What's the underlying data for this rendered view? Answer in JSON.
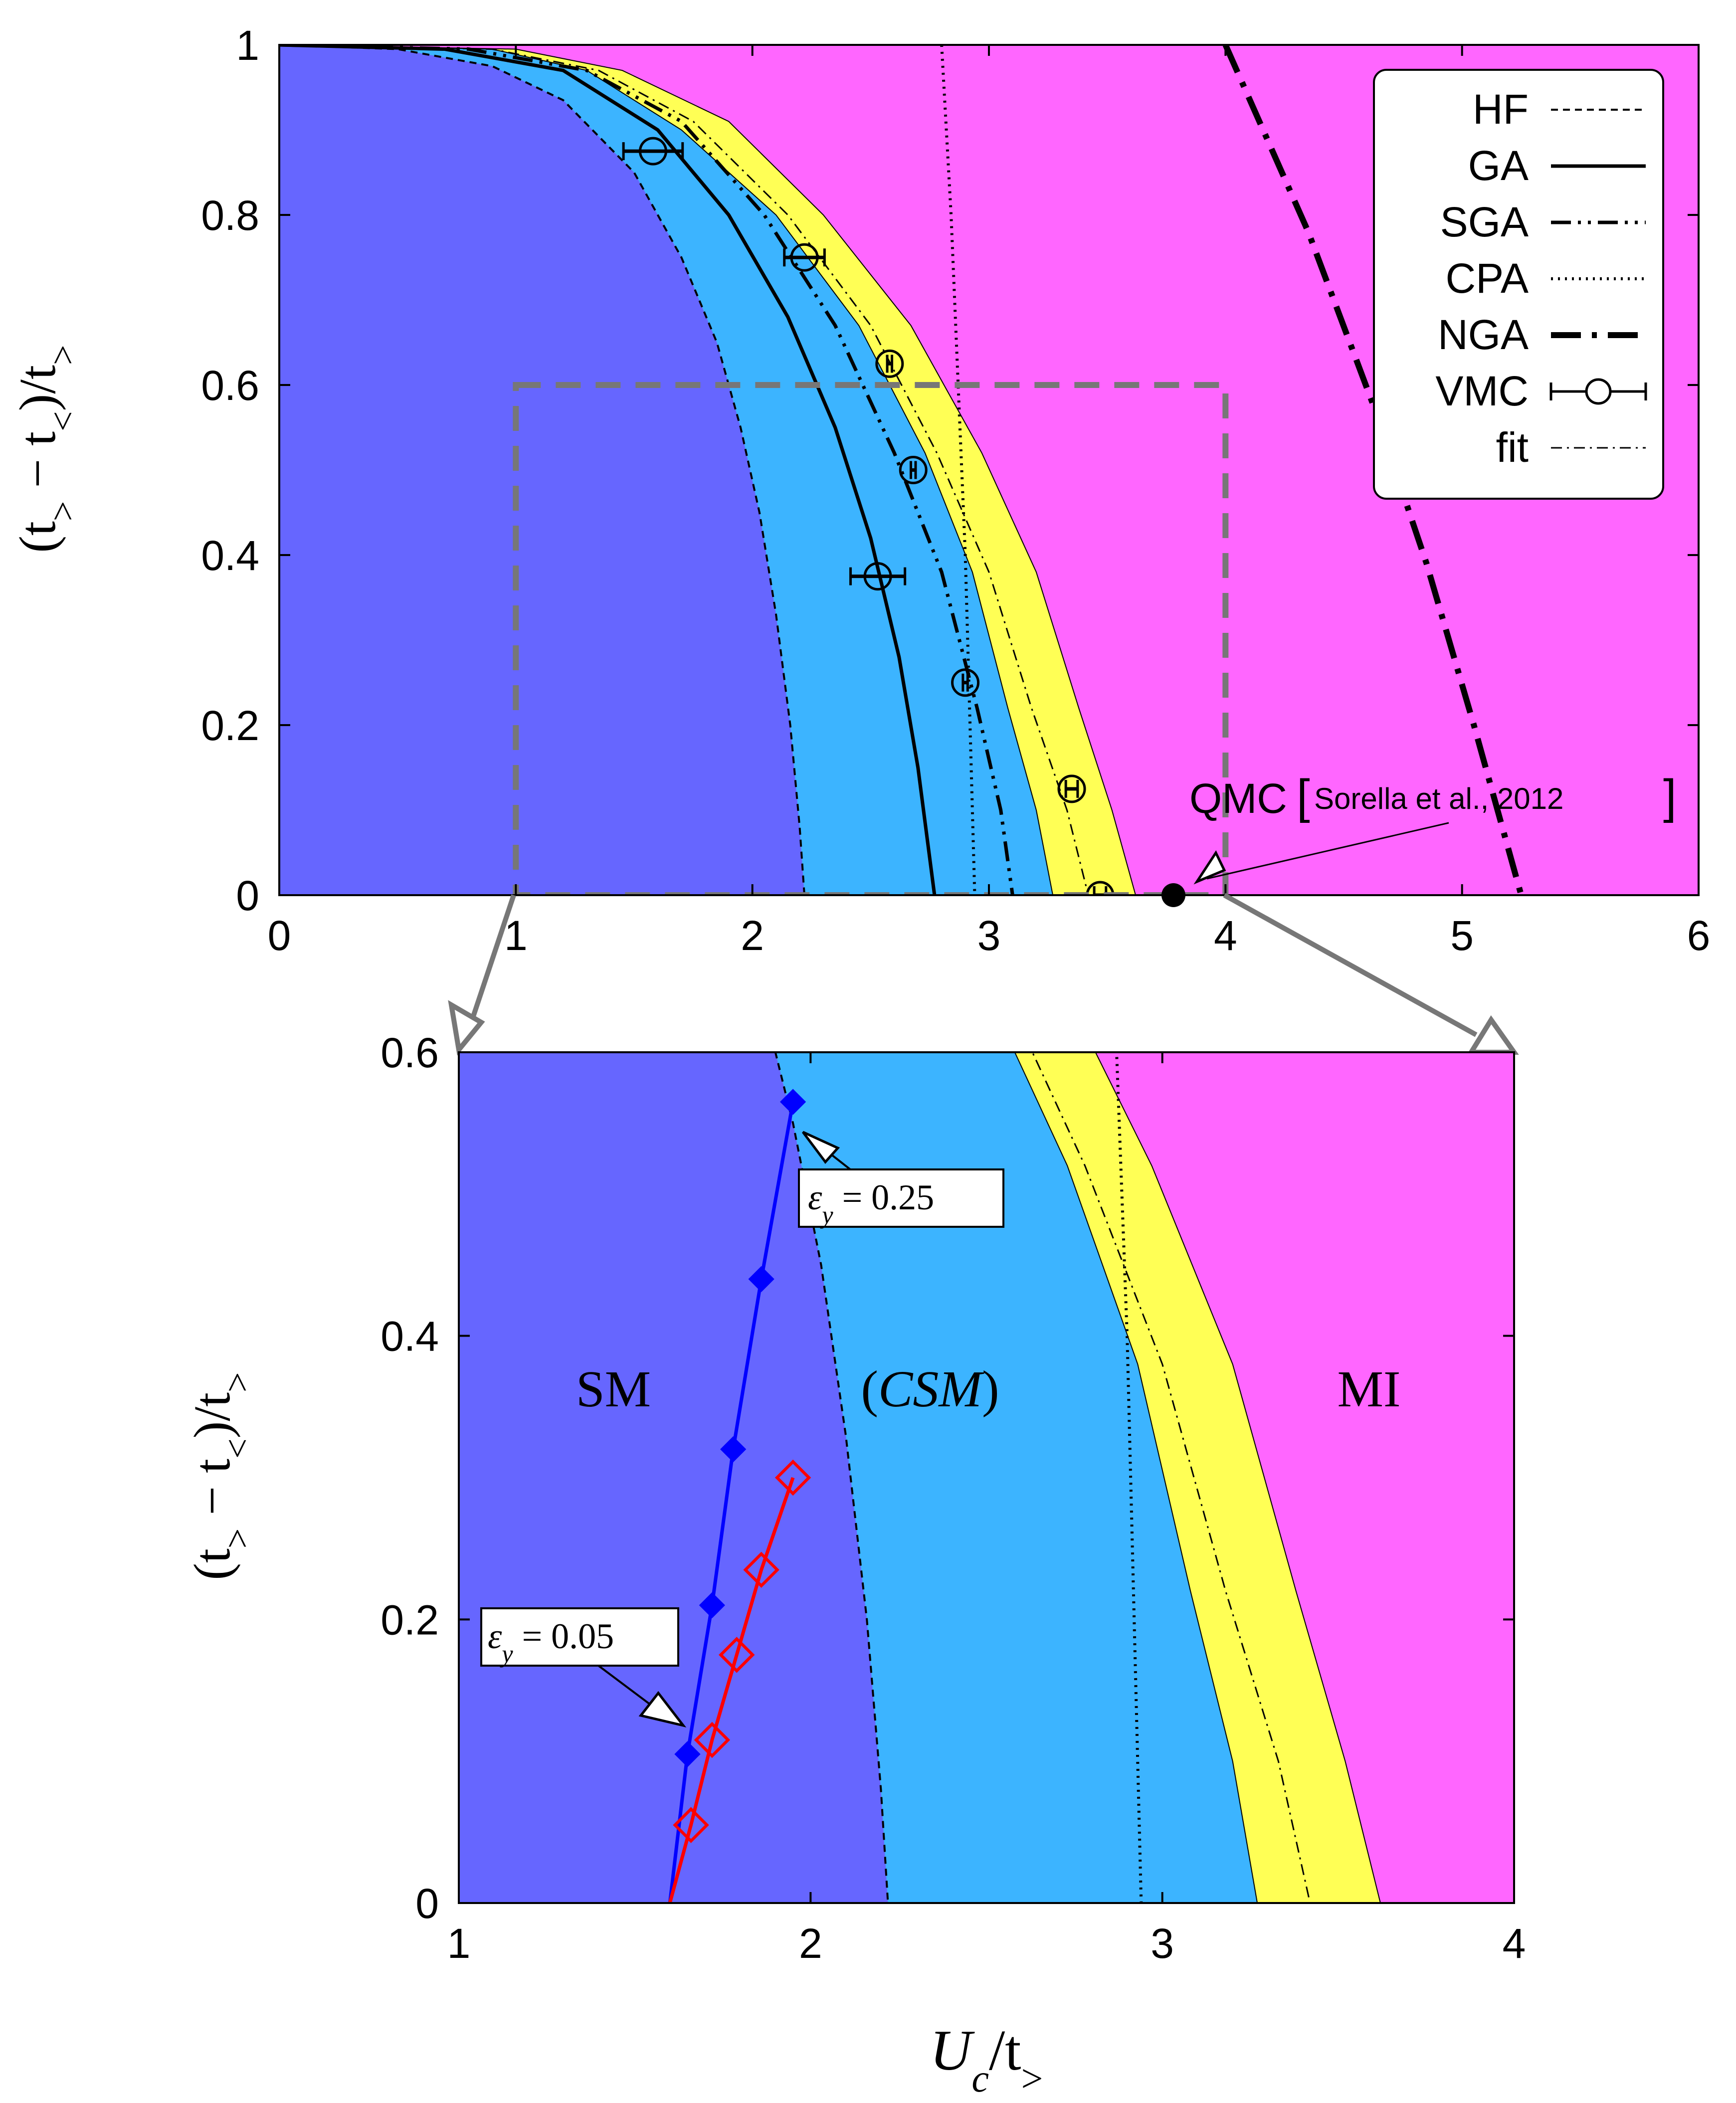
{
  "colors": {
    "sm": "#6666ff",
    "csm": "#3cb4ff",
    "yellow": "#ffff55",
    "mi": "#ff66ff",
    "blue_series": "#0000ff",
    "red_series": "#ff0000",
    "zoom_box": "#777777"
  },
  "chart_data": [
    {
      "type": "area",
      "xlabel": "",
      "ylabel": "(t> − t<)/t>",
      "xlim": [
        0,
        6
      ],
      "ylim": [
        0,
        1
      ],
      "x_ticks": [
        "0",
        "1",
        "2",
        "3",
        "4",
        "5",
        "6"
      ],
      "y_ticks": [
        "0",
        "0.2",
        "0.4",
        "0.6",
        "0.8",
        "1"
      ],
      "legend_position": "top-right",
      "legend": [
        "HF",
        "GA",
        "SGA",
        "CPA",
        "NGA",
        "VMC",
        "fit"
      ],
      "series": [
        {
          "name": "HF",
          "style": "dashed-thin",
          "points": [
            [
              0.0,
              1.0
            ],
            [
              0.5,
              0.995
            ],
            [
              0.9,
              0.975
            ],
            [
              1.2,
              0.935
            ],
            [
              1.5,
              0.85
            ],
            [
              1.7,
              0.75
            ],
            [
              1.85,
              0.65
            ],
            [
              1.95,
              0.55
            ],
            [
              2.03,
              0.45
            ],
            [
              2.1,
              0.33
            ],
            [
              2.16,
              0.2
            ],
            [
              2.2,
              0.08
            ],
            [
              2.22,
              0.0
            ]
          ]
        },
        {
          "name": "GA",
          "style": "solid",
          "points": [
            [
              0.0,
              1.0
            ],
            [
              0.7,
              0.995
            ],
            [
              1.2,
              0.97
            ],
            [
              1.6,
              0.9
            ],
            [
              1.9,
              0.8
            ],
            [
              2.15,
              0.68
            ],
            [
              2.35,
              0.55
            ],
            [
              2.5,
              0.42
            ],
            [
              2.62,
              0.28
            ],
            [
              2.7,
              0.15
            ],
            [
              2.77,
              0.0
            ]
          ]
        },
        {
          "name": "SGA",
          "style": "dash-dot-dot",
          "points": [
            [
              0.0,
              1.0
            ],
            [
              0.8,
              0.995
            ],
            [
              1.3,
              0.97
            ],
            [
              1.7,
              0.91
            ],
            [
              2.05,
              0.8
            ],
            [
              2.35,
              0.67
            ],
            [
              2.6,
              0.52
            ],
            [
              2.8,
              0.38
            ],
            [
              2.95,
              0.22
            ],
            [
              3.05,
              0.1
            ],
            [
              3.1,
              0.0
            ]
          ]
        },
        {
          "name": "CPA",
          "style": "dotted",
          "points": [
            [
              2.8,
              1.0
            ],
            [
              2.84,
              0.8
            ],
            [
              2.87,
              0.6
            ],
            [
              2.9,
              0.4
            ],
            [
              2.92,
              0.2
            ],
            [
              2.94,
              0.0
            ]
          ]
        },
        {
          "name": "NGA",
          "style": "dash-dot-thick",
          "points": [
            [
              4.0,
              1.0
            ],
            [
              4.35,
              0.78
            ],
            [
              4.62,
              0.58
            ],
            [
              4.85,
              0.39
            ],
            [
              5.05,
              0.2
            ],
            [
              5.17,
              0.08
            ],
            [
              5.25,
              0.0
            ]
          ]
        },
        {
          "name": "fit",
          "style": "dash-dot-thin",
          "points": [
            [
              0.0,
              1.0
            ],
            [
              0.9,
              0.995
            ],
            [
              1.35,
              0.97
            ],
            [
              1.75,
              0.91
            ],
            [
              2.15,
              0.8
            ],
            [
              2.5,
              0.67
            ],
            [
              2.78,
              0.52
            ],
            [
              3.0,
              0.38
            ],
            [
              3.18,
              0.22
            ],
            [
              3.33,
              0.1
            ],
            [
              3.42,
              0.0
            ]
          ]
        },
        {
          "name": "VMC",
          "style": "circles-errorbars",
          "points": [
            [
              1.58,
              0.875,
              0.25
            ],
            [
              2.22,
              0.75,
              0.17
            ],
            [
              2.58,
              0.625,
              0.02
            ],
            [
              2.68,
              0.5,
              0.02
            ],
            [
              2.53,
              0.375,
              0.23
            ],
            [
              2.9,
              0.25,
              0.02
            ],
            [
              3.35,
              0.125,
              0.05
            ],
            [
              3.47,
              0.0,
              0.05
            ]
          ]
        },
        {
          "name": "QMC",
          "style": "filled-point",
          "points": [
            [
              3.78,
              0.0
            ]
          ]
        }
      ],
      "region_boundaries": {
        "sm_csm": [
          [
            0.0,
            1.0
          ],
          [
            0.5,
            0.995
          ],
          [
            0.9,
            0.975
          ],
          [
            1.2,
            0.935
          ],
          [
            1.5,
            0.85
          ],
          [
            1.7,
            0.75
          ],
          [
            1.85,
            0.65
          ],
          [
            1.95,
            0.55
          ],
          [
            2.03,
            0.45
          ],
          [
            2.1,
            0.33
          ],
          [
            2.16,
            0.2
          ],
          [
            2.2,
            0.08
          ],
          [
            2.22,
            0.0
          ]
        ],
        "csm_yellow": [
          [
            0.0,
            1.0
          ],
          [
            0.9,
            0.995
          ],
          [
            1.3,
            0.97
          ],
          [
            1.7,
            0.9
          ],
          [
            2.1,
            0.8
          ],
          [
            2.45,
            0.67
          ],
          [
            2.73,
            0.52
          ],
          [
            2.93,
            0.38
          ],
          [
            3.08,
            0.22
          ],
          [
            3.2,
            0.1
          ],
          [
            3.27,
            0.0
          ]
        ],
        "yellow_mi": [
          [
            0.0,
            1.0
          ],
          [
            1.0,
            0.995
          ],
          [
            1.45,
            0.97
          ],
          [
            1.9,
            0.91
          ],
          [
            2.3,
            0.8
          ],
          [
            2.67,
            0.67
          ],
          [
            2.97,
            0.52
          ],
          [
            3.2,
            0.38
          ],
          [
            3.38,
            0.22
          ],
          [
            3.52,
            0.1
          ],
          [
            3.62,
            0.0
          ]
        ]
      },
      "annotations": [
        {
          "text": "QMC [Sorella et al., 2012]",
          "x": 3.78,
          "y": 0.0
        }
      ],
      "zoom_box": {
        "x": [
          1,
          4
        ],
        "y": [
          0,
          0.6
        ]
      }
    },
    {
      "type": "area",
      "xlabel": "Uc/t>",
      "ylabel": "(t> − t<)/t>",
      "xlim": [
        1,
        4
      ],
      "ylim": [
        0,
        0.6
      ],
      "x_ticks": [
        "1",
        "2",
        "3",
        "4"
      ],
      "y_ticks": [
        "0",
        "0.2",
        "0.4",
        "0.6"
      ],
      "regions": [
        "SM",
        "(CSM)",
        "MI"
      ],
      "series": [
        {
          "name": "εy = 0.25",
          "style": "blue-filled-diamonds",
          "points": [
            [
              1.6,
              0.0
            ],
            [
              1.65,
              0.105
            ],
            [
              1.72,
              0.21
            ],
            [
              1.78,
              0.32
            ],
            [
              1.86,
              0.44
            ],
            [
              1.95,
              0.565
            ]
          ]
        },
        {
          "name": "εy = 0.05",
          "style": "red-open-diamonds",
          "points": [
            [
              1.6,
              0.0
            ],
            [
              1.66,
              0.055
            ],
            [
              1.72,
              0.115
            ],
            [
              1.79,
              0.175
            ],
            [
              1.86,
              0.235
            ],
            [
              1.95,
              0.3
            ]
          ]
        }
      ],
      "annotations": [
        {
          "text": "εy = 0.25",
          "x": 1.95,
          "y": 0.565
        },
        {
          "text": "εy = 0.05",
          "x": 1.65,
          "y": 0.105
        }
      ]
    }
  ],
  "labels": {
    "top_ylabel_main": "(t",
    "top_ylabel_sub1": ">",
    "top_ylabel_mid": " − t",
    "top_ylabel_sub2": "<",
    "top_ylabel_end": ")/t",
    "top_ylabel_sub3": ">",
    "bottom_xlabel_main": "U",
    "bottom_xlabel_sub1": "c",
    "bottom_xlabel_mid": "/t",
    "bottom_xlabel_sub2": ">",
    "qmc_main": "QMC",
    "qmc_ref": "Sorella et al., 2012",
    "region_sm": "SM",
    "region_csm_open": "(",
    "region_csm": "CSM",
    "region_csm_close": ")",
    "region_mi": "MI",
    "eps_var": "ε",
    "eps_sub": "y",
    "eps_big_value": " = 0.25",
    "eps_small_value": " = 0.05"
  }
}
